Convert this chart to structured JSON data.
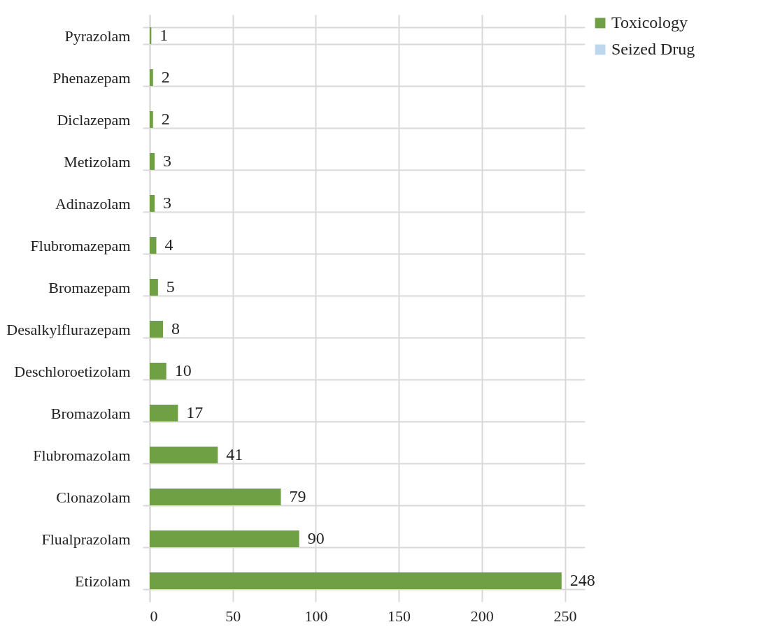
{
  "chart_data": {
    "type": "bar",
    "orientation": "horizontal",
    "categories": [
      "Pyrazolam",
      "Phenazepam",
      "Diclazepam",
      "Metizolam",
      "Adinazolam",
      "Flubromazepam",
      "Bromazepam",
      "Desalkylflurazepam",
      "Deschloroetizolam",
      "Bromazolam",
      "Flubromazolam",
      "Clonazolam",
      "Flualprazolam",
      "Etizolam"
    ],
    "series": [
      {
        "name": "Toxicology",
        "color": "#70a044",
        "values": [
          1,
          2,
          2,
          3,
          3,
          4,
          5,
          8,
          10,
          17,
          41,
          79,
          90,
          248
        ]
      },
      {
        "name": "Seized Drug",
        "color": "#bdd7ee",
        "values": [
          null,
          null,
          null,
          null,
          null,
          null,
          null,
          null,
          null,
          null,
          null,
          null,
          null,
          null
        ]
      }
    ],
    "xlim": [
      0,
      262
    ],
    "xticks": [
      0,
      50,
      100,
      150,
      200,
      250
    ],
    "grid": true,
    "legend": "right",
    "data_labels": true
  }
}
